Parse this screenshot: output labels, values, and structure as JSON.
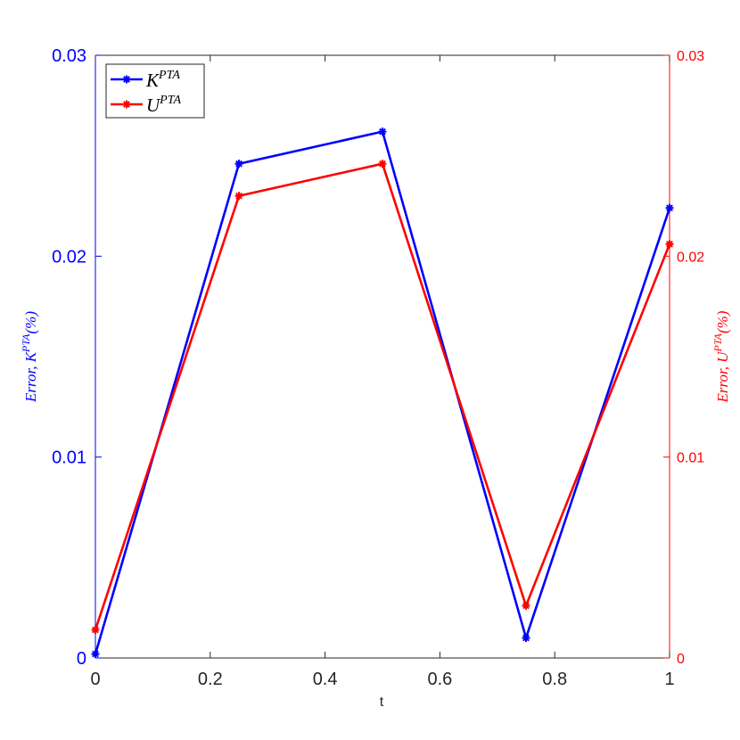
{
  "chart_data": {
    "type": "line",
    "x": [
      0,
      0.25,
      0.5,
      0.75,
      1
    ],
    "xlim": [
      0,
      1
    ],
    "xticks": [
      "0",
      "0.2",
      "0.4",
      "0.6",
      "0.8",
      "1"
    ],
    "xtick_values": [
      0,
      0.2,
      0.4,
      0.6,
      0.8,
      1
    ],
    "xlabel": "t",
    "ylim_left": [
      0,
      0.03
    ],
    "ylim_right": [
      0,
      0.03
    ],
    "yticks_left": [
      "0",
      "0.01",
      "0.02",
      "0.03"
    ],
    "yticks_right": [
      "0",
      "0.01",
      "0.02",
      "0.03"
    ],
    "ytick_values": [
      0,
      0.01,
      0.02,
      0.03
    ],
    "ylabel_left": {
      "main": "Error, K",
      "sup": "PTA",
      "tail": "(%)"
    },
    "ylabel_right": {
      "main": "Error, U",
      "sup": "PTA",
      "tail": "(%)"
    },
    "legend_position": "top-left",
    "grid": false,
    "series": [
      {
        "name": "K",
        "name_sup": "PTA",
        "axis": "left",
        "color": "#0000ff",
        "marker": "asterisk",
        "values": [
          0.0002,
          0.0246,
          0.0262,
          0.001,
          0.0224
        ]
      },
      {
        "name": "U",
        "name_sup": "PTA",
        "axis": "right",
        "color": "#ff0000",
        "marker": "asterisk",
        "values": [
          0.0014,
          0.023,
          0.0246,
          0.0026,
          0.0206
        ]
      }
    ],
    "colors": {
      "left_axis": "#0000ff",
      "right_axis": "#ff0000",
      "box": "#262626"
    }
  }
}
